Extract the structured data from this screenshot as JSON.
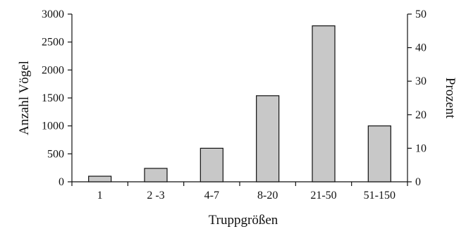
{
  "chart_data": {
    "type": "bar",
    "categories": [
      "1",
      "2 -3",
      "4-7",
      "8-20",
      "21-50",
      "51-150"
    ],
    "values": [
      100,
      240,
      600,
      1540,
      2790,
      1000
    ],
    "xlabel": "Truppgrößen",
    "ylabel": "Anzahl Vögel",
    "y2label": "Prozent",
    "ylim": [
      0,
      3000
    ],
    "y2lim": [
      0,
      50
    ],
    "yticks": [
      "0",
      "500",
      "1000",
      "1500",
      "2000",
      "2500",
      "3000"
    ],
    "y2ticks": [
      "0",
      "10",
      "20",
      "30",
      "40",
      "50"
    ],
    "grid": false,
    "colors": {
      "bar_fill": "#c8c8c8",
      "bar_stroke": "#111111",
      "axis": "#111111"
    }
  }
}
